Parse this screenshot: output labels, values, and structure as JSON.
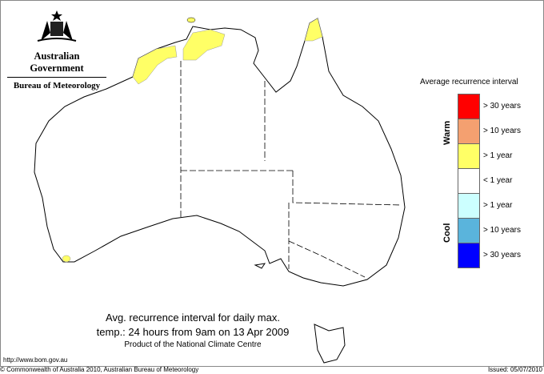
{
  "header": {
    "logo_text": "Australian Government",
    "agency": "Bureau of Meteorology"
  },
  "legend": {
    "title": "Average recurrence interval",
    "warm_label": "Warm",
    "cool_label": "Cool",
    "items": [
      {
        "label": "> 30 years",
        "color": "#ff0000"
      },
      {
        "label": "> 10 years",
        "color": "#f4a070"
      },
      {
        "label": "> 1 year",
        "color": "#ffff66"
      },
      {
        "label": "< 1 year",
        "color": "#ffffff"
      },
      {
        "label": "> 1 year",
        "color": "#ccffff"
      },
      {
        "label": "> 10 years",
        "color": "#5ab4dc"
      },
      {
        "label": "> 30 years",
        "color": "#0000ff"
      }
    ]
  },
  "caption": {
    "line1": "Avg. recurrence interval for daily max.",
    "line2": "temp.: 24 hours from 9am on 13 Apr 2009",
    "line3": "Product of the National Climate Centre"
  },
  "url": "http://www.bom.gov.au",
  "copyright": "© Commonwealth of Australia 2010, Australian Bureau of Meteorology",
  "issued": "Issued: 05/07/2010",
  "map": {
    "region": "Australia",
    "highlighted_category": "> 1 year (warm)",
    "highlight_color": "#ffff66"
  }
}
